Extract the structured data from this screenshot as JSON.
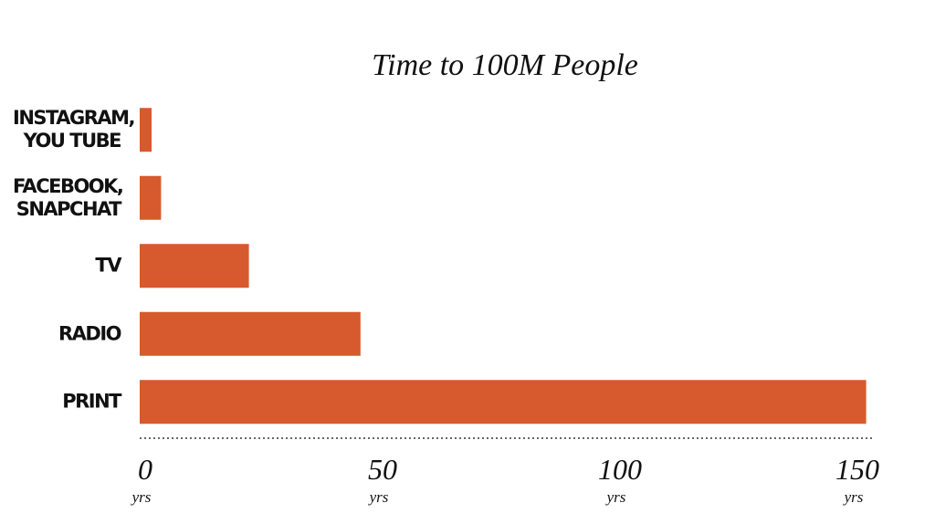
{
  "chart_data": {
    "type": "hbar",
    "title": "Time to 100M People",
    "categories": [
      "INSTAGRAM, YOU TUBE",
      "FACEBOOK, SNAPCHAT",
      "TV",
      "RADIO",
      "PRINT"
    ],
    "values": [
      2.5,
      4.5,
      23,
      46.5,
      153
    ],
    "color": "#d65a2e",
    "xlim": [
      0,
      155
    ],
    "xticks": [
      0,
      50,
      100,
      150
    ],
    "x_unit": "yrs"
  }
}
